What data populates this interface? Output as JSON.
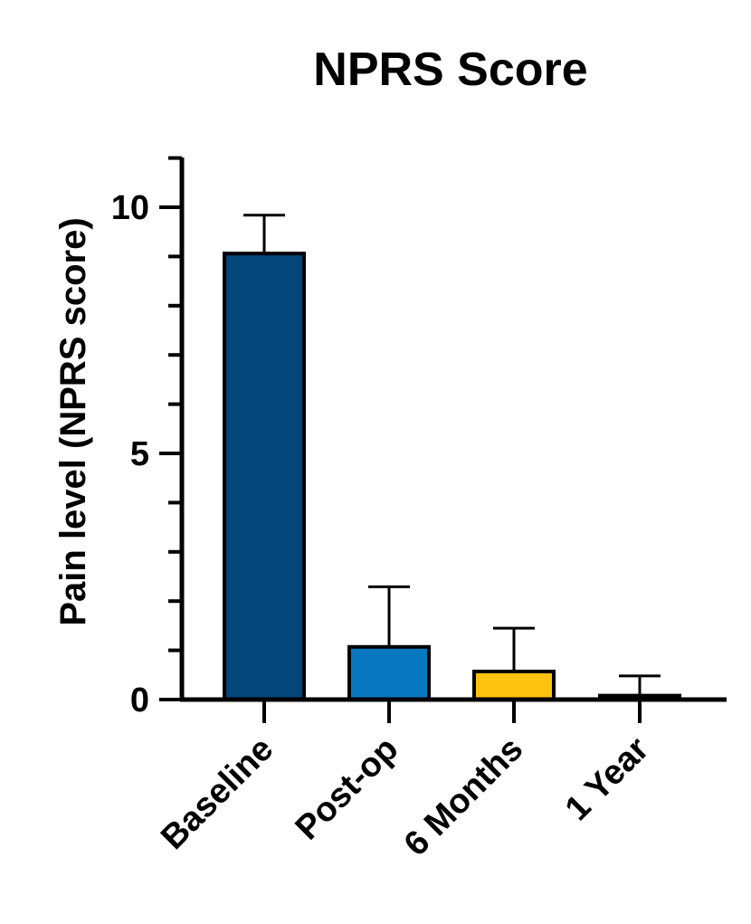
{
  "chart_data": {
    "type": "bar",
    "title": "NPRS Score",
    "xlabel": "",
    "ylabel": "Pain level (NPRS score)",
    "ylim": [
      0,
      11
    ],
    "yticks_major": [
      0,
      5,
      10
    ],
    "yticks_minor": [
      1,
      2,
      3,
      4,
      6,
      7,
      8,
      9,
      11
    ],
    "categories": [
      "Baseline",
      "Post-op",
      "6 Months",
      "1 Year"
    ],
    "values": [
      9.06,
      1.07,
      0.57,
      0.08
    ],
    "error": [
      0.78,
      1.22,
      0.88,
      0.4
    ],
    "colors": [
      "#03467A",
      "#0878C0",
      "#FDC210",
      "#0878C0"
    ],
    "grid": false,
    "legend": "none"
  }
}
